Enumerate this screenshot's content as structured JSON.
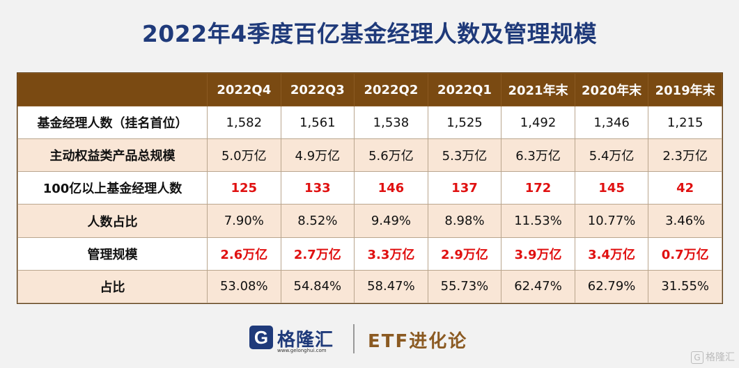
{
  "title": "2022年4季度百亿基金经理人数及管理规模",
  "chart_data": {
    "type": "table",
    "columns": [
      "2022Q4",
      "2022Q3",
      "2022Q2",
      "2022Q1",
      "2021年末",
      "2020年末",
      "2019年末"
    ],
    "rows": [
      {
        "label": "基金经理人数（挂名首位）",
        "highlight": false,
        "values": [
          "1,582",
          "1,561",
          "1,538",
          "1,525",
          "1,492",
          "1,346",
          "1,215"
        ]
      },
      {
        "label": "主动权益类产品总规模",
        "highlight": false,
        "values": [
          "5.0万亿",
          "4.9万亿",
          "5.6万亿",
          "5.3万亿",
          "6.3万亿",
          "5.4万亿",
          "2.3万亿"
        ]
      },
      {
        "label": "100亿以上基金经理人数",
        "highlight": true,
        "values": [
          "125",
          "133",
          "146",
          "137",
          "172",
          "145",
          "42"
        ]
      },
      {
        "label": "人数占比",
        "highlight": false,
        "values": [
          "7.90%",
          "8.52%",
          "9.49%",
          "8.98%",
          "11.53%",
          "10.77%",
          "3.46%"
        ]
      },
      {
        "label": "管理规模",
        "highlight": true,
        "values": [
          "2.6万亿",
          "2.7万亿",
          "3.3万亿",
          "2.9万亿",
          "3.9万亿",
          "3.4万亿",
          "0.7万亿"
        ]
      },
      {
        "label": "占比",
        "highlight": false,
        "values": [
          "53.08%",
          "54.84%",
          "58.47%",
          "55.73%",
          "62.47%",
          "62.79%",
          "31.55%"
        ]
      }
    ]
  },
  "colors": {
    "header_bg": "#7a4a12",
    "row_alt_bg": "#f9e6d6",
    "highlight_text": "#e01010",
    "title_color": "#1f3a7a"
  },
  "footer": {
    "logo_letter": "G",
    "logo_text": "格隆汇",
    "logo_url": "www.gelonghui.com",
    "brand": "ETF进化论"
  },
  "watermark": {
    "icon": "G",
    "text": "格隆汇"
  }
}
